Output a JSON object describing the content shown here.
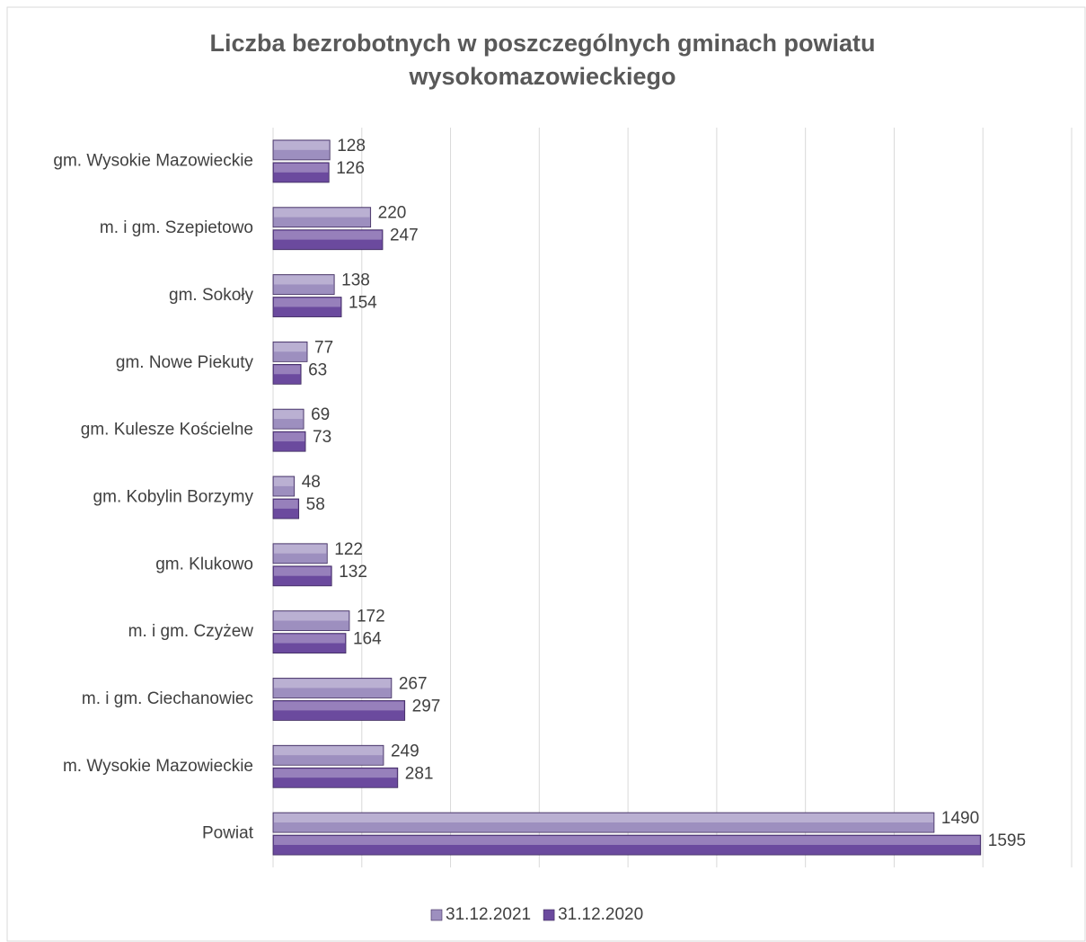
{
  "chart_data": {
    "type": "bar",
    "orientation": "horizontal",
    "title": "Liczba bezrobotnych w poszczególnych gminach powiatu wysokomazowieckiego",
    "categories": [
      "gm. Wysokie Mazowieckie",
      "m. i gm. Szepietowo",
      "gm. Sokoły",
      "gm. Nowe Piekuty",
      "gm. Kulesze Kościelne",
      "gm. Kobylin Borzymy",
      "gm. Klukowo",
      "m. i gm. Czyżew",
      "m. i gm. Ciechanowiec",
      "m. Wysokie Mazowieckie",
      "Powiat"
    ],
    "series": [
      {
        "name": "31.12.2021",
        "color": "#9d8fbf",
        "values": [
          128,
          220,
          138,
          77,
          69,
          48,
          122,
          172,
          267,
          249,
          1490
        ]
      },
      {
        "name": "31.12.2020",
        "color": "#6b4a9e",
        "values": [
          126,
          247,
          154,
          63,
          73,
          58,
          132,
          164,
          297,
          281,
          1595
        ]
      }
    ],
    "xlim": [
      0,
      1800
    ],
    "xticks": [
      0,
      200,
      400,
      600,
      800,
      1000,
      1200,
      1400,
      1600,
      1800
    ],
    "grid": true,
    "legend": "bottom"
  }
}
